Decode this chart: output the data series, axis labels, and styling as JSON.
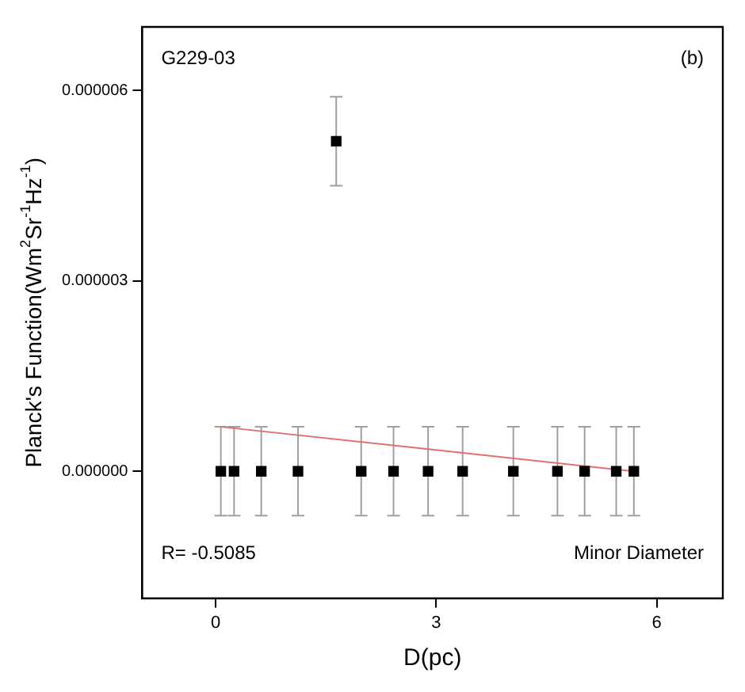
{
  "chart_data": {
    "type": "scatter",
    "xlabel": "D(pc)",
    "ylabel": "Planck's Function(Wm$^{2}$Sr$^{-1}$Hz$^{-1}$)",
    "annotations": [
      "G229-03",
      "(b)",
      "R= -0.5085",
      "Minor Diameter"
    ],
    "xlim": [
      -1,
      6.9
    ],
    "xticks": [
      0,
      3,
      6
    ],
    "ylim": [
      -2e-06,
      7e-06
    ],
    "yticks": [
      {
        "value": 0,
        "label": "0.000000"
      },
      {
        "value": 3e-06,
        "label": "0.000003"
      },
      {
        "value": 6e-06,
        "label": "0.000006"
      }
    ],
    "grid": false,
    "legend": false,
    "series": [
      {
        "type": "scatter",
        "color": "#000000",
        "marker": "square",
        "x": [
          0.07,
          0.25,
          0.62,
          1.12,
          1.64,
          1.98,
          2.42,
          2.89,
          3.36,
          4.05,
          4.65,
          5.02,
          5.45,
          5.69
        ],
        "values": [
          0,
          0,
          0,
          0,
          5.2e-06,
          0,
          0,
          0,
          0,
          0,
          0,
          0,
          0,
          0
        ],
        "errors": [
          7e-07,
          7e-07,
          7e-07,
          7e-07,
          7e-07,
          7e-07,
          7e-07,
          7e-07,
          7e-07,
          7e-07,
          7e-07,
          7e-07,
          7e-07,
          7e-07
        ]
      },
      {
        "type": "line",
        "color": "#e07070",
        "marker": "none",
        "x": [
          0.07,
          5.69
        ],
        "values": [
          7e-07,
          0
        ]
      }
    ]
  }
}
